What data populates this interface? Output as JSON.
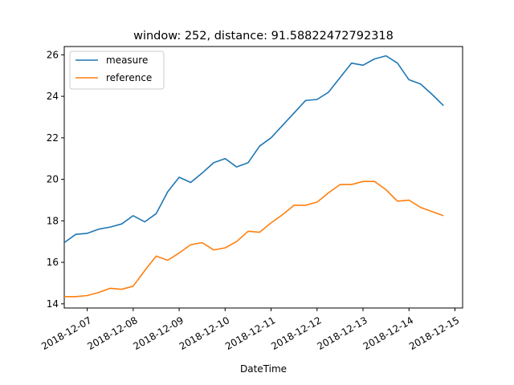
{
  "chart_data": {
    "type": "line",
    "title": "window: 252, distance: 91.58822472792318",
    "xlabel": "DateTime",
    "ylabel": "",
    "xlim": [
      "2018-12-06T12:00",
      "2018-12-15T04:00"
    ],
    "ylim": [
      13.8,
      26.4
    ],
    "x_ticks": [
      "2018-12-07",
      "2018-12-08",
      "2018-12-09",
      "2018-12-10",
      "2018-12-11",
      "2018-12-12",
      "2018-12-13",
      "2018-12-14",
      "2018-12-15"
    ],
    "y_ticks": [
      14,
      16,
      18,
      20,
      22,
      24,
      26
    ],
    "grid": false,
    "legend": "top-left",
    "x": [
      "2018-12-06T12:00",
      "2018-12-06T18:00",
      "2018-12-07T00:00",
      "2018-12-07T06:00",
      "2018-12-07T12:00",
      "2018-12-07T18:00",
      "2018-12-08T00:00",
      "2018-12-08T06:00",
      "2018-12-08T12:00",
      "2018-12-08T18:00",
      "2018-12-09T00:00",
      "2018-12-09T06:00",
      "2018-12-09T12:00",
      "2018-12-09T18:00",
      "2018-12-10T00:00",
      "2018-12-10T06:00",
      "2018-12-10T12:00",
      "2018-12-10T18:00",
      "2018-12-11T00:00",
      "2018-12-11T06:00",
      "2018-12-11T12:00",
      "2018-12-11T18:00",
      "2018-12-12T00:00",
      "2018-12-12T06:00",
      "2018-12-12T12:00",
      "2018-12-12T18:00",
      "2018-12-13T00:00",
      "2018-12-13T06:00",
      "2018-12-13T12:00",
      "2018-12-13T18:00",
      "2018-12-14T00:00",
      "2018-12-14T06:00",
      "2018-12-14T12:00",
      "2018-12-14T18:00"
    ],
    "series": [
      {
        "name": "measure",
        "color": "#1f77b4",
        "values": [
          16.95,
          17.35,
          17.4,
          17.6,
          17.7,
          17.85,
          18.25,
          17.95,
          18.35,
          19.4,
          20.1,
          19.85,
          20.3,
          20.8,
          21.0,
          20.6,
          20.8,
          21.6,
          22.0,
          22.6,
          23.2,
          23.8,
          23.85,
          24.2,
          24.9,
          25.6,
          25.5,
          25.8,
          25.95,
          25.6,
          24.8,
          24.6,
          24.1,
          23.55
        ]
      },
      {
        "name": "reference",
        "color": "#ff7f0e",
        "values": [
          14.35,
          14.35,
          14.4,
          14.55,
          14.75,
          14.7,
          14.85,
          15.6,
          16.3,
          16.1,
          16.45,
          16.85,
          16.95,
          16.6,
          16.7,
          17.0,
          17.5,
          17.45,
          17.9,
          18.3,
          18.75,
          18.75,
          18.9,
          19.35,
          19.75,
          19.75,
          19.9,
          19.9,
          19.5,
          18.95,
          19.0,
          18.65,
          18.45,
          18.25
        ]
      }
    ]
  }
}
